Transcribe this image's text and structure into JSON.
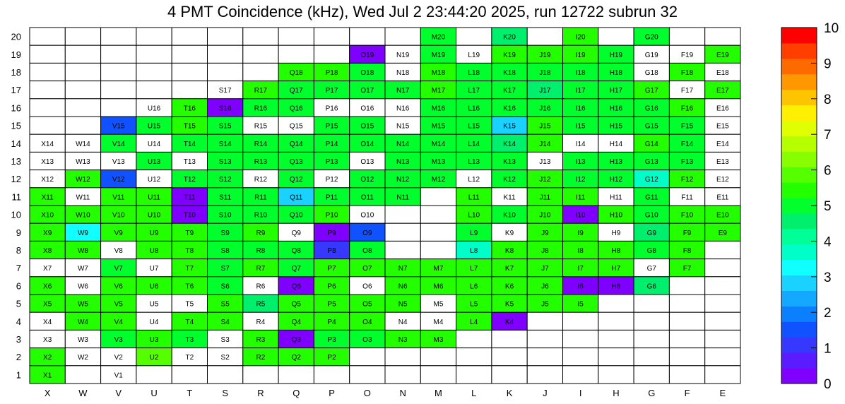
{
  "title": "4 PMT Coincidence (kHz), Wed Jul  2 23:44:20 2025, run 12722 subrun 32",
  "chart_data": {
    "type": "heatmap",
    "x_labels": [
      "X",
      "W",
      "V",
      "U",
      "T",
      "S",
      "R",
      "Q",
      "P",
      "O",
      "N",
      "M",
      "L",
      "K",
      "J",
      "I",
      "H",
      "G",
      "F",
      "E"
    ],
    "y_labels": [
      "20",
      "19",
      "18",
      "17",
      "16",
      "15",
      "14",
      "13",
      "12",
      "11",
      "10",
      "9",
      "8",
      "7",
      "6",
      "5",
      "4",
      "3",
      "2",
      "1"
    ],
    "z_range": [
      0,
      10
    ],
    "colorbar_ticks": [
      "0",
      "1",
      "2",
      "3",
      "4",
      "5",
      "6",
      "7",
      "8",
      "9",
      "10"
    ],
    "empty_color": "#ffffff",
    "palette": [
      "#7f00ff",
      "#5b1bff",
      "#3637ff",
      "#1052ff",
      "#0b80ff",
      "#14a8ff",
      "#19d2ff",
      "#10ffff",
      "#00ffc8",
      "#00ff96",
      "#00f06e",
      "#00ff2c",
      "#24ff00",
      "#56ff00",
      "#88ff00",
      "#b6ff00",
      "#e0ff00",
      "#ffef00",
      "#ffc400",
      "#ff9800",
      "#ff6a00",
      "#ff3e00",
      "#ff0000"
    ],
    "rows": [
      [
        "",
        "",
        "",
        "",
        "",
        "",
        "",
        "",
        "",
        "",
        "",
        "M20:4.8",
        "",
        "K20:4.6",
        "",
        "I20:5.3",
        "",
        "G20:5.0",
        "",
        ""
      ],
      [
        "",
        "",
        "",
        "",
        "",
        "",
        "",
        "",
        "",
        "O19:0.3",
        "N19",
        "M19:5.2",
        "L19",
        "K19:5.3",
        "J19:5.6",
        "I19:5.4",
        "H19:4.9",
        "G19",
        "F19",
        "E19:5.5"
      ],
      [
        "",
        "",
        "",
        "",
        "",
        "",
        "",
        "Q18:5.5",
        "P18:5.3",
        "O18:4.9",
        "N18",
        "M18:5.3",
        "L18:5.2",
        "K18:5.2",
        "J18:5.0",
        "I18:5.0",
        "H18:5.0",
        "G18",
        "F18:5.3",
        "E18"
      ],
      [
        "",
        "",
        "",
        "",
        "",
        "S17",
        "R17:5.3",
        "Q17:5.1",
        "P17:5.1",
        "O17:5.0",
        "N17:5.2",
        "M17:5.4",
        "L17:5.0",
        "K17:5.0",
        "J17:4.5",
        "I17:5.0",
        "H17:5.0",
        "G17:5.6",
        "F17",
        "E17:5.5"
      ],
      [
        "",
        "",
        "",
        "U16",
        "T16:5.4",
        "S16:0.3",
        "R16:5.1",
        "Q16:5.0",
        "P16",
        "O16",
        "N16",
        "M16:5.2",
        "L16:5.2",
        "K16:5.0",
        "J16:5.2",
        "I16:5.1",
        "H16:5.1",
        "G16:4.9",
        "F16:5.5",
        "E16"
      ],
      [
        "",
        "",
        "V15:1.5",
        "U15:5.0",
        "T15:5.3",
        "S15:5.1",
        "R15",
        "Q15",
        "P15:5.2",
        "O15:4.9",
        "N15",
        "M15:5.0",
        "L15:5.1",
        "K15:2.9",
        "J15:5.3",
        "I15:5.1",
        "H15:5.2",
        "G15:5.0",
        "F15:5.2",
        "E15"
      ],
      [
        "X14",
        "W14",
        "V14:5.2",
        "U14",
        "T14:5.2",
        "S14:5.0",
        "R14:5.1",
        "Q14:4.8",
        "P14:5.2",
        "O14:5.0",
        "N14:5.1",
        "M14:5.1",
        "L14:5.1",
        "K14:4.4",
        "J14:5.6",
        "I14",
        "H14",
        "G14:5.4",
        "F14:5.2",
        "E14"
      ],
      [
        "X13",
        "W13",
        "V13",
        "U13:4.9",
        "T13",
        "S13:5.0",
        "R13:5.1",
        "Q13:5.0",
        "P13:5.2",
        "O13",
        "N13:5.0",
        "M13:5.2",
        "L13:5.2",
        "K13:5.2",
        "J13",
        "I13:5.0",
        "H13:5.1",
        "G13:5.1",
        "F13:4.9",
        "E13"
      ],
      [
        "X12",
        "W12:5.6",
        "V12:1.6",
        "U12",
        "T12:5.0",
        "S12:5.0",
        "R12",
        "Q12:4.8",
        "P12",
        "O12:5.1",
        "N12:5.0",
        "M12:5.1",
        "L12",
        "K12:5.2",
        "J12:5.5",
        "I12:5.1",
        "H12:5.2",
        "G12:3.6",
        "F12:5.4",
        "E12"
      ],
      [
        "X11:5.6",
        "W11",
        "V11:5.5",
        "U11:5.5",
        "T11:0.3",
        "S11:4.9",
        "R11:5.1",
        "Q11:3.0",
        "P11:5.2",
        "O11:5.2",
        "N11:5.0",
        "",
        "L11:5.4",
        "K11",
        "J11:5.6",
        "I11:5.3",
        "H11",
        "G11:5.2",
        "F11",
        "E11"
      ],
      [
        "X10:5.6",
        "W10:5.5",
        "V10:5.5",
        "U10:5.5",
        "T10:0.3",
        "S10:5.1",
        "R10:4.9",
        "Q10:5.2",
        "P10:5.5",
        "O10",
        "",
        "",
        "L10:5.5",
        "K10:5.2",
        "J10:5.5",
        "I10:0.3",
        "H10:5.3",
        "G10:5.1",
        "F10:5.4",
        "E10:5.4"
      ],
      [
        "X9:5.5",
        "W9:3.4",
        "V9:5.3",
        "U9:5.5",
        "T9:5.3",
        "S9:5.1",
        "R9:5.3",
        "Q9",
        "P9:0.3",
        "O9:1.6",
        "",
        "",
        "L9:5.0",
        "K9",
        "J9:5.5",
        "I9:5.6",
        "H9",
        "G9:4.4",
        "F9:5.5",
        "E9:5.3"
      ],
      [
        "X8:5.5",
        "W8:5.5",
        "V8",
        "U8:5.4",
        "T8:5.3",
        "S8:5.2",
        "R8:5.2",
        "Q8:5.2",
        "P8:1.0",
        "O8:5.2",
        "",
        "",
        "L8:3.5",
        "K8:5.5",
        "J8:5.6",
        "I8:5.5",
        "H8:5.5",
        "G8:5.2",
        "F8:5.5",
        ""
      ],
      [
        "X7",
        "W7",
        "V7:5.2",
        "U7",
        "T7:5.3",
        "S7:5.2",
        "R7:5.3",
        "Q7:5.2",
        "P7:5.6",
        "O7:5.5",
        "N7:5.4",
        "M7:5.5",
        "L7:5.5",
        "K7:5.5",
        "J7:5.5",
        "I7:5.4",
        "H7:5.5",
        "G7",
        "F7:5.6",
        ""
      ],
      [
        "X6:5.6",
        "W6",
        "V6:5.4",
        "U6:5.3",
        "T6:5.3",
        "S6:5.2",
        "R6",
        "Q6:0.3",
        "P6:5.5",
        "O6",
        "N6:5.5",
        "M6:5.5",
        "L6:5.5",
        "K6:5.3",
        "J6:5.6",
        "I6:0.3",
        "H6:0.3",
        "G6:4.4",
        "",
        ""
      ],
      [
        "X5:5.5",
        "W5:5.6",
        "V5:5.5",
        "U5",
        "T5",
        "S5:5.3",
        "R5:4.4",
        "Q5:5.4",
        "P5:5.5",
        "O5:5.4",
        "N5:5.4",
        "M5",
        "L5:5.5",
        "K5:5.5",
        "J5:5.6",
        "I5:5.6",
        "",
        "",
        "",
        ""
      ],
      [
        "X4",
        "W4:5.5",
        "V4:5.6",
        "U4",
        "T4:5.4",
        "S4:5.5",
        "R4",
        "Q4:5.6",
        "P4:5.5",
        "O4:5.4",
        "N4",
        "M4",
        "L4:5.6",
        "K4:0.3",
        "",
        "",
        "",
        "",
        "",
        ""
      ],
      [
        "X3",
        "W3",
        "V3:4.8",
        "U3:5.4",
        "T3:5.2",
        "S3",
        "R3:5.6",
        "Q3:0.3",
        "P3:5.1",
        "O3:5.1",
        "N3:5.3",
        "M3:5.5",
        "",
        "",
        "",
        "",
        "",
        "",
        "",
        ""
      ],
      [
        "X2:5.6",
        "W2",
        "V2",
        "U2:5.9",
        "T2",
        "S2",
        "R2:5.6",
        "Q2:5.6",
        "P2:5.6",
        "",
        "",
        "",
        "",
        "",
        "",
        "",
        "",
        "",
        "",
        ""
      ],
      [
        "X1:5.6",
        "",
        "V1",
        "",
        "",
        "",
        "",
        "",
        "",
        "",
        "",
        "",
        "",
        "",
        "",
        "",
        "",
        "",
        "",
        ""
      ]
    ]
  }
}
